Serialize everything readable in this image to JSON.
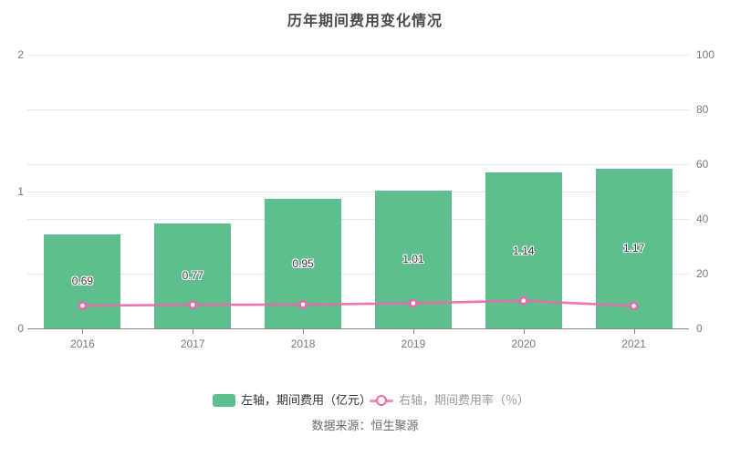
{
  "title": "历年期间费用变化情况",
  "source_note": "数据来源：恒生聚源",
  "legend": {
    "bar_label": "左轴，期间费用（亿元）",
    "line_label": "右轴，期间费用率（％）"
  },
  "colors": {
    "bar": "#5fbe8d",
    "line": "#e86aa9",
    "marker_fill": "#ffffff",
    "grid": "#e2e8f2",
    "axis": "#83878f",
    "axis_text": "#767b86",
    "title_text": "#4a4a4a",
    "bar_label_text": "#3a3a3a"
  },
  "chart_data": {
    "type": "bar",
    "title": "历年期间费用变化情况",
    "categories": [
      "2016",
      "2017",
      "2018",
      "2019",
      "2020",
      "2021"
    ],
    "series": [
      {
        "name": "左轴，期间费用（亿元）",
        "type": "bar",
        "axis": "left",
        "values": [
          0.69,
          0.77,
          0.95,
          1.01,
          1.14,
          1.17
        ],
        "labels": [
          "0.69",
          "0.77",
          "0.95",
          "1.01",
          "1.14",
          "1.17"
        ]
      },
      {
        "name": "右轴，期间费用率（％）",
        "type": "line",
        "axis": "right",
        "values": [
          8.3,
          8.6,
          8.7,
          9.2,
          10.1,
          8.2
        ]
      }
    ],
    "left_axis": {
      "min": 0,
      "max": 2,
      "ticks": [
        0,
        1,
        2
      ]
    },
    "right_axis": {
      "min": 0,
      "max": 100,
      "ticks": [
        0,
        20,
        40,
        60,
        80,
        100
      ]
    },
    "grid": true,
    "legend_position": "bottom",
    "xlabel": "",
    "ylabel_left": "期间费用（亿元）",
    "ylabel_right": "期间费用率（％）"
  }
}
